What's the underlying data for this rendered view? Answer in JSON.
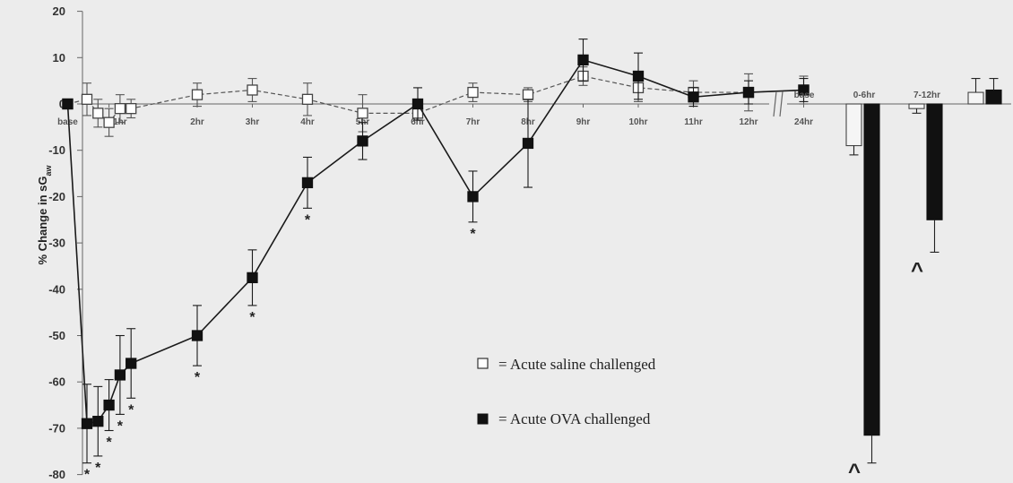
{
  "chart_data": [
    {
      "type": "line",
      "ylabel": "% Change in sG",
      "ylabel_sub": "aw",
      "ylim": [
        -80,
        20
      ],
      "yticks": [
        20,
        10,
        0,
        -10,
        -20,
        -30,
        -40,
        -50,
        -60,
        -70,
        -80
      ],
      "x": [
        "base",
        "",
        "",
        "",
        "1hr",
        "",
        "2hr",
        "3hr",
        "4hr",
        "5hr",
        "6hr",
        "7hr",
        "8hr",
        "9hr",
        "10hr",
        "11hr",
        "12hr",
        "24hr"
      ],
      "x_hours": [
        -0.35,
        0.0,
        0.2,
        0.4,
        0.6,
        0.8,
        2,
        3,
        4,
        5,
        6,
        7,
        8,
        9,
        10,
        11,
        12,
        13
      ],
      "series": [
        {
          "legend_label": "= Acute saline challenged",
          "marker": "open-square",
          "line": "dashed",
          "color": "#555555",
          "values": [
            0,
            1,
            -2,
            -4,
            -1,
            -1,
            2,
            3,
            1,
            -2,
            -2,
            2.5,
            2,
            6,
            3.5,
            2.5,
            2.5,
            3
          ],
          "errors": [
            0,
            3.5,
            3,
            3,
            3,
            2,
            2.5,
            2.5,
            3.5,
            4,
            0,
            2,
            1.5,
            2,
            3,
            2.5,
            4,
            3
          ]
        },
        {
          "legend_label": "= Acute OVA challenged",
          "marker": "filled-square",
          "line": "solid",
          "color": "#1a1a1a",
          "values": [
            0,
            -69,
            -68.5,
            -65,
            -58.5,
            -56,
            -50,
            -37.5,
            -17,
            -8,
            0,
            -20,
            -8.5,
            9.5,
            6,
            1.5,
            2.5,
            3
          ],
          "errors": [
            0,
            8.5,
            7.5,
            5.5,
            8.5,
            7.5,
            6.5,
            6,
            5.5,
            4,
            3.5,
            5.5,
            9.5,
            4.5,
            5,
            2,
            2.5,
            2.5
          ]
        }
      ],
      "annotations": [
        {
          "text": "*",
          "series": 1,
          "points": [
            1,
            2,
            3,
            4,
            5,
            6,
            7,
            8,
            11
          ]
        }
      ]
    },
    {
      "type": "bar",
      "categories": [
        "base",
        "0-6hr",
        "7-12hr",
        ""
      ],
      "ylim": [
        -80,
        20
      ],
      "series": [
        {
          "marker": "open",
          "values": [
            0,
            -9,
            -1,
            2.5
          ],
          "errors": [
            0,
            2,
            1,
            3
          ]
        },
        {
          "marker": "filled",
          "values": [
            0,
            -71.5,
            -25,
            3
          ],
          "errors": [
            0,
            6,
            7,
            2.5
          ]
        }
      ],
      "annotations": [
        {
          "text": "^",
          "category": "0-6hr"
        },
        {
          "text": "^",
          "category": "7-12hr"
        }
      ]
    }
  ]
}
